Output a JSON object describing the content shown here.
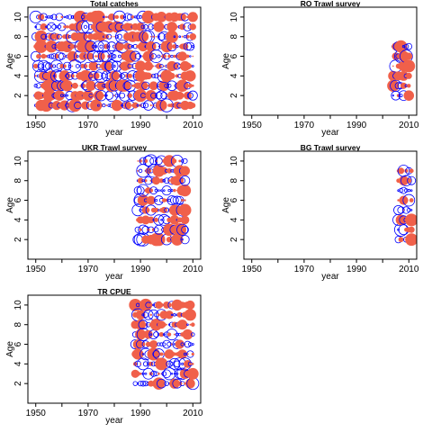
{
  "figure": {
    "background": "#ffffff"
  },
  "colors": {
    "positive": "#f0604a",
    "negative": "#0000ff",
    "axis": "#000000"
  },
  "chart_data": [
    {
      "type": "scatter",
      "title": "Total catches",
      "xlabel": "year",
      "ylabel": "Age",
      "xlim": [
        1947,
        2013
      ],
      "ylim": [
        0,
        11
      ],
      "xticks": [
        1950,
        1960,
        1970,
        1980,
        1990,
        2000,
        2010
      ],
      "xtick_labels": [
        "1950",
        "",
        "1970",
        "",
        "1990",
        "",
        "2010"
      ],
      "yticks": [
        2,
        4,
        6,
        8,
        10
      ],
      "grid": false,
      "marker": "bubble",
      "bubbles": {
        "years": [
          1950,
          2010
        ],
        "ages": [
          1,
          10
        ]
      }
    },
    {
      "type": "scatter",
      "title": "RO Trawl survey",
      "xlabel": "year",
      "ylabel": "Age",
      "xlim": [
        1947,
        2013
      ],
      "ylim": [
        0,
        11
      ],
      "xticks": [
        1950,
        1960,
        1970,
        1980,
        1990,
        2000,
        2010
      ],
      "xtick_labels": [
        "1950",
        "",
        "1970",
        "",
        "1990",
        "",
        "2010"
      ],
      "yticks": [
        2,
        4,
        6,
        8,
        10
      ],
      "grid": false,
      "marker": "bubble",
      "bubbles": {
        "years": [
          2004,
          2010
        ],
        "ages": [
          2,
          7
        ]
      }
    },
    {
      "type": "scatter",
      "title": "UKR Trawl survey",
      "xlabel": "year",
      "ylabel": "Age",
      "xlim": [
        1947,
        2013
      ],
      "ylim": [
        0,
        11
      ],
      "xticks": [
        1950,
        1960,
        1970,
        1980,
        1990,
        2000,
        2010
      ],
      "xtick_labels": [
        "1950",
        "",
        "1970",
        "",
        "1990",
        "",
        "2010"
      ],
      "yticks": [
        2,
        4,
        6,
        8,
        10
      ],
      "grid": false,
      "marker": "bubble",
      "bubbles": {
        "years": [
          1989,
          2007
        ],
        "ages": [
          2,
          10
        ]
      }
    },
    {
      "type": "scatter",
      "title": "BG Trawl survey",
      "xlabel": "year",
      "ylabel": "Age",
      "xlim": [
        1947,
        2013
      ],
      "ylim": [
        0,
        11
      ],
      "xticks": [
        1950,
        1960,
        1970,
        1980,
        1990,
        2000,
        2010
      ],
      "xtick_labels": [
        "1950",
        "",
        "1970",
        "",
        "1990",
        "",
        "2010"
      ],
      "yticks": [
        2,
        4,
        6,
        8,
        10
      ],
      "grid": false,
      "marker": "bubble",
      "bubbles": {
        "years": [
          2006,
          2011
        ],
        "ages": [
          2,
          9
        ]
      }
    },
    {
      "type": "scatter",
      "title": "TR CPUE",
      "xlabel": "year",
      "ylabel": "Age",
      "xlim": [
        1947,
        2013
      ],
      "ylim": [
        0,
        11
      ],
      "xticks": [
        1950,
        1960,
        1970,
        1980,
        1990,
        2000,
        2010
      ],
      "xtick_labels": [
        "1950",
        "",
        "1970",
        "",
        "1990",
        "",
        "2010"
      ],
      "yticks": [
        2,
        4,
        6,
        8,
        10
      ],
      "grid": false,
      "marker": "bubble",
      "bubbles": {
        "years": [
          1988,
          2010
        ],
        "ages": [
          2,
          10
        ]
      }
    }
  ]
}
